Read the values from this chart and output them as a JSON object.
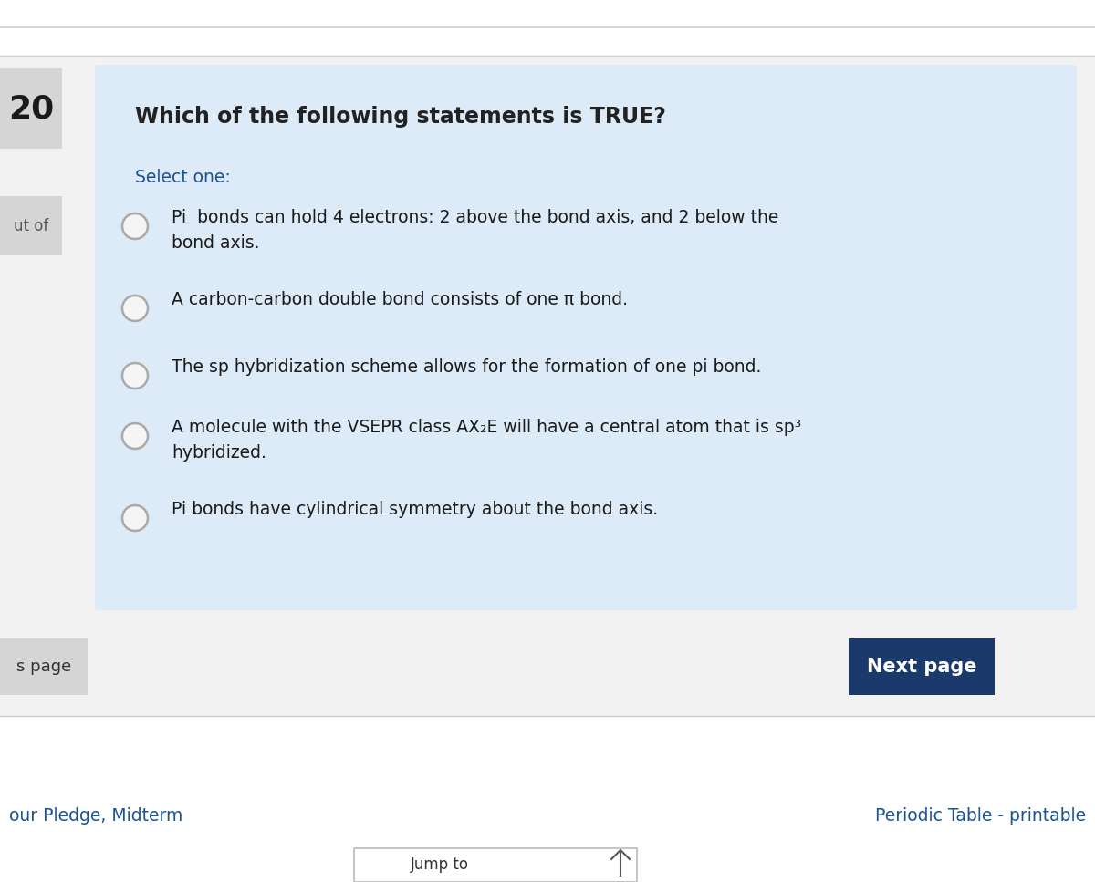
{
  "bg_color": "#f2f2f2",
  "card_bg": "#ddeaf7",
  "question_number": "20",
  "question_number_bg": "#d5d5d5",
  "question_text": "Which of the following statements is TRUE?",
  "select_one_text": "Select one:",
  "select_one_color": "#1a5296",
  "question_color": "#222222",
  "left_label_text": "ut of",
  "left_label_bg": "#d5d5d5",
  "options": [
    [
      "Pi  bonds can hold 4 electrons: 2 above the bond axis, and 2 below the",
      "bond axis."
    ],
    [
      "A carbon-carbon double bond consists of one π bond."
    ],
    [
      "The sp hybridization scheme allows for the formation of one pi bond."
    ],
    [
      "A molecule with the VSEPR class AX₂E will have a central atom that is sp³",
      "hybridized."
    ],
    [
      "Pi bonds have cylindrical symmetry about the bond axis."
    ]
  ],
  "option_text_color": "#1a1a1a",
  "radio_edge_color": "#aaaaaa",
  "radio_fill": "#f5f5f5",
  "next_btn_bg": "#1b3a6b",
  "next_btn_text": "Next page",
  "next_btn_color": "#ffffff",
  "bottom_left_text": "s page",
  "bottom_left_bg": "#d5d5d5",
  "footer_left": "our Pledge, Midterm",
  "footer_right": "Periodic Table - printable",
  "footer_color": "#1a5296",
  "top_line_color": "#cccccc",
  "jump_btn_text": "Jump to",
  "jump_btn_bg": "#ffffff",
  "jump_btn_border": "#bbbbbb",
  "white_bg": "#ffffff"
}
